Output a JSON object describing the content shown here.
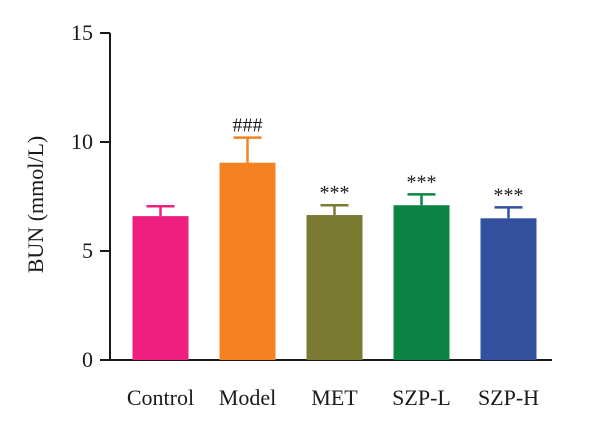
{
  "chart_data": {
    "type": "bar",
    "title": "",
    "xlabel": "",
    "ylabel": "BUN (mmol/L)",
    "ylim": [
      0,
      15
    ],
    "yticks": [
      0,
      5,
      10,
      15
    ],
    "grid": false,
    "legend": "none",
    "categories": [
      "Control",
      "Model",
      "MET",
      "SZP-L",
      "SZP-H"
    ],
    "values": [
      6.6,
      9.05,
      6.65,
      7.1,
      6.5
    ],
    "errors": [
      0.45,
      1.15,
      0.45,
      0.5,
      0.5
    ],
    "annotations": [
      "",
      "###",
      "***",
      "***",
      "***"
    ],
    "colors": [
      "#ee1f7f",
      "#f58220",
      "#7b7a32",
      "#0b8443",
      "#33509f"
    ]
  }
}
